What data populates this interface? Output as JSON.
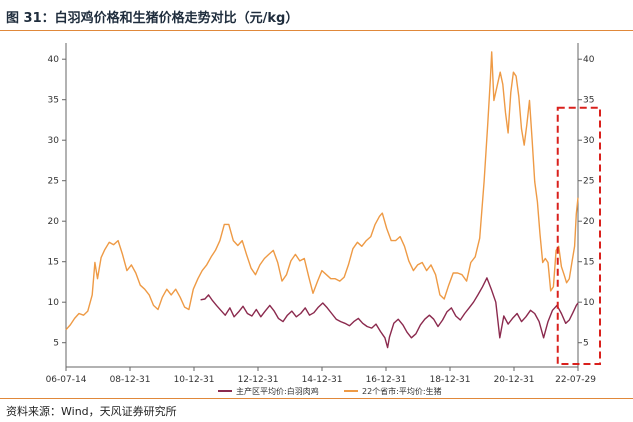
{
  "figure_title": "图 31：白羽鸡价格和生猪价格走势对比（元/kg）",
  "source": "资料来源：Wind，天风证券研究所",
  "colors": {
    "chicken": "#8b2a4e",
    "hog": "#ee9a45",
    "highlight": "#d9201c",
    "rule": "#e0883a"
  },
  "chart_data": {
    "type": "line",
    "title": "",
    "xlabel": "",
    "ylabel": "",
    "x_tick_labels": [
      "06-07-14",
      "08-12-31",
      "10-12-31",
      "12-12-31",
      "14-12-31",
      "16-12-31",
      "18-12-31",
      "20-12-31",
      "22-07-29"
    ],
    "x_range": [
      "2006-07-14",
      "2022-07-29"
    ],
    "ylim": [
      2,
      42
    ],
    "y_ticks": [
      5,
      10,
      15,
      20,
      25,
      30,
      35,
      40
    ],
    "y_tick_labels_left": [
      "5",
      "10",
      "15",
      "20",
      "25",
      "30",
      "35",
      "40"
    ],
    "y_tick_labels_right": [
      "5",
      "10",
      "15",
      "20",
      "25",
      "30",
      "35",
      "40"
    ],
    "grid": false,
    "legend_position": "bottom",
    "highlight_annotation": {
      "x_range": [
        "2022-01-01",
        "2022-07-29"
      ],
      "y_range": [
        2,
        34
      ],
      "style": "dashed red box"
    },
    "series": [
      {
        "name": "主产区平均价:白羽肉鸡",
        "color": "#8b2a4e",
        "points": [
          [
            "2010-10-01",
            10.3
          ],
          [
            "2010-11-20",
            10.4
          ],
          [
            "2010-12-31",
            10.9
          ],
          [
            "2011-02-15",
            10.2
          ],
          [
            "2011-04-01",
            9.6
          ],
          [
            "2011-05-20",
            9.0
          ],
          [
            "2011-07-10",
            8.4
          ],
          [
            "2011-09-01",
            9.3
          ],
          [
            "2011-10-20",
            8.2
          ],
          [
            "2011-12-10",
            8.8
          ],
          [
            "2012-01-30",
            9.5
          ],
          [
            "2012-03-20",
            8.6
          ],
          [
            "2012-05-10",
            8.3
          ],
          [
            "2012-06-30",
            9.1
          ],
          [
            "2012-08-20",
            8.2
          ],
          [
            "2012-10-10",
            8.9
          ],
          [
            "2012-12-01",
            9.6
          ],
          [
            "2013-01-20",
            8.9
          ],
          [
            "2013-03-10",
            8.0
          ],
          [
            "2013-05-01",
            7.6
          ],
          [
            "2013-06-20",
            8.4
          ],
          [
            "2013-08-10",
            8.9
          ],
          [
            "2013-09-30",
            8.2
          ],
          [
            "2013-11-20",
            8.6
          ],
          [
            "2014-01-10",
            9.3
          ],
          [
            "2014-03-01",
            8.4
          ],
          [
            "2014-04-20",
            8.7
          ],
          [
            "2014-06-10",
            9.4
          ],
          [
            "2014-07-31",
            9.9
          ],
          [
            "2014-09-20",
            9.3
          ],
          [
            "2014-11-10",
            8.6
          ],
          [
            "2014-12-31",
            7.9
          ],
          [
            "2015-02-20",
            7.6
          ],
          [
            "2015-04-10",
            7.4
          ],
          [
            "2015-06-01",
            7.1
          ],
          [
            "2015-07-20",
            7.6
          ],
          [
            "2015-09-10",
            8.0
          ],
          [
            "2015-10-30",
            7.4
          ],
          [
            "2015-12-20",
            7.0
          ],
          [
            "2016-02-10",
            6.8
          ],
          [
            "2016-03-30",
            7.3
          ],
          [
            "2016-05-20",
            6.4
          ],
          [
            "2016-07-10",
            5.6
          ],
          [
            "2016-08-10",
            4.4
          ],
          [
            "2016-09-01",
            5.7
          ],
          [
            "2016-10-20",
            7.4
          ],
          [
            "2016-12-10",
            7.9
          ],
          [
            "2017-02-01",
            7.2
          ],
          [
            "2017-03-20",
            6.3
          ],
          [
            "2017-05-10",
            5.6
          ],
          [
            "2017-06-30",
            6.1
          ],
          [
            "2017-08-20",
            7.2
          ],
          [
            "2017-10-10",
            7.9
          ],
          [
            "2017-12-01",
            8.4
          ],
          [
            "2018-01-20",
            7.9
          ],
          [
            "2018-03-10",
            7.0
          ],
          [
            "2018-05-01",
            7.8
          ],
          [
            "2018-06-20",
            8.8
          ],
          [
            "2018-08-10",
            9.3
          ],
          [
            "2018-09-30",
            8.3
          ],
          [
            "2018-11-20",
            7.8
          ],
          [
            "2019-01-10",
            8.6
          ],
          [
            "2019-03-01",
            9.3
          ],
          [
            "2019-04-20",
            10.0
          ],
          [
            "2019-06-10",
            10.9
          ],
          [
            "2019-08-01",
            11.9
          ],
          [
            "2019-09-20",
            13.0
          ],
          [
            "2019-11-10",
            11.6
          ],
          [
            "2019-12-31",
            10.0
          ],
          [
            "2020-02-15",
            5.6
          ],
          [
            "2020-04-01",
            8.3
          ],
          [
            "2020-05-20",
            7.3
          ],
          [
            "2020-07-10",
            8.0
          ],
          [
            "2020-08-31",
            8.6
          ],
          [
            "2020-10-20",
            7.6
          ],
          [
            "2020-12-10",
            8.2
          ],
          [
            "2021-01-31",
            9.0
          ],
          [
            "2021-03-20",
            8.6
          ],
          [
            "2021-05-10",
            7.6
          ],
          [
            "2021-06-30",
            5.6
          ],
          [
            "2021-08-20",
            7.6
          ],
          [
            "2021-10-10",
            9.0
          ],
          [
            "2021-12-01",
            9.6
          ],
          [
            "2022-01-20",
            8.6
          ],
          [
            "2022-03-10",
            7.4
          ],
          [
            "2022-04-20",
            7.8
          ],
          [
            "2022-06-01",
            8.7
          ],
          [
            "2022-07-10",
            9.6
          ],
          [
            "2022-07-29",
            9.9
          ]
        ]
      },
      {
        "name": "22个省市:平均价:生猪",
        "color": "#ee9a45",
        "points": [
          [
            "2006-07-14",
            6.6
          ],
          [
            "2006-09-01",
            7.2
          ],
          [
            "2006-10-20",
            8.0
          ],
          [
            "2006-12-10",
            8.6
          ],
          [
            "2007-01-30",
            8.4
          ],
          [
            "2007-03-20",
            8.9
          ],
          [
            "2007-05-10",
            10.9
          ],
          [
            "2007-06-10",
            14.9
          ],
          [
            "2007-07-10",
            12.9
          ],
          [
            "2007-08-20",
            15.5
          ],
          [
            "2007-10-01",
            16.5
          ],
          [
            "2007-11-20",
            17.4
          ],
          [
            "2008-01-10",
            17.1
          ],
          [
            "2008-03-01",
            17.6
          ],
          [
            "2008-04-20",
            15.9
          ],
          [
            "2008-06-10",
            13.9
          ],
          [
            "2008-07-31",
            14.6
          ],
          [
            "2008-09-20",
            13.6
          ],
          [
            "2008-11-10",
            12.1
          ],
          [
            "2008-12-31",
            11.6
          ],
          [
            "2009-02-20",
            10.9
          ],
          [
            "2009-04-10",
            9.6
          ],
          [
            "2009-06-01",
            9.1
          ],
          [
            "2009-07-20",
            10.6
          ],
          [
            "2009-09-10",
            11.6
          ],
          [
            "2009-10-30",
            10.9
          ],
          [
            "2009-12-20",
            11.6
          ],
          [
            "2010-02-10",
            10.6
          ],
          [
            "2010-04-01",
            9.4
          ],
          [
            "2010-05-20",
            9.1
          ],
          [
            "2010-07-10",
            11.6
          ],
          [
            "2010-08-31",
            12.9
          ],
          [
            "2010-10-20",
            13.9
          ],
          [
            "2010-12-10",
            14.6
          ],
          [
            "2011-01-31",
            15.6
          ],
          [
            "2011-03-20",
            16.4
          ],
          [
            "2011-05-10",
            17.6
          ],
          [
            "2011-06-30",
            19.6
          ],
          [
            "2011-08-20",
            19.6
          ],
          [
            "2011-10-10",
            17.6
          ],
          [
            "2011-12-01",
            17.0
          ],
          [
            "2012-01-20",
            17.6
          ],
          [
            "2012-03-10",
            15.9
          ],
          [
            "2012-05-01",
            14.2
          ],
          [
            "2012-06-20",
            13.4
          ],
          [
            "2012-08-10",
            14.6
          ],
          [
            "2012-09-30",
            15.4
          ],
          [
            "2012-11-20",
            15.9
          ],
          [
            "2013-01-10",
            16.4
          ],
          [
            "2013-03-01",
            14.9
          ],
          [
            "2013-04-20",
            12.6
          ],
          [
            "2013-06-10",
            13.4
          ],
          [
            "2013-07-31",
            15.1
          ],
          [
            "2013-09-20",
            15.9
          ],
          [
            "2013-11-10",
            15.1
          ],
          [
            "2013-12-31",
            15.4
          ],
          [
            "2014-02-20",
            13.1
          ],
          [
            "2014-04-10",
            11.1
          ],
          [
            "2014-06-01",
            12.6
          ],
          [
            "2014-07-20",
            13.9
          ],
          [
            "2014-09-10",
            13.4
          ],
          [
            "2014-10-30",
            12.9
          ],
          [
            "2014-12-20",
            12.9
          ],
          [
            "2015-02-10",
            12.6
          ],
          [
            "2015-04-01",
            13.1
          ],
          [
            "2015-05-20",
            14.6
          ],
          [
            "2015-07-10",
            16.6
          ],
          [
            "2015-08-31",
            17.4
          ],
          [
            "2015-10-20",
            16.9
          ],
          [
            "2015-12-10",
            17.6
          ],
          [
            "2016-01-31",
            18.1
          ],
          [
            "2016-03-20",
            19.6
          ],
          [
            "2016-05-10",
            20.6
          ],
          [
            "2016-06-10",
            21.0
          ],
          [
            "2016-07-31",
            19.1
          ],
          [
            "2016-09-20",
            17.6
          ],
          [
            "2016-11-10",
            17.6
          ],
          [
            "2016-12-31",
            18.1
          ],
          [
            "2017-02-20",
            16.9
          ],
          [
            "2017-04-10",
            15.1
          ],
          [
            "2017-06-01",
            13.9
          ],
          [
            "2017-07-20",
            14.6
          ],
          [
            "2017-09-10",
            14.9
          ],
          [
            "2017-10-30",
            13.9
          ],
          [
            "2017-12-20",
            14.6
          ],
          [
            "2018-02-10",
            13.4
          ],
          [
            "2018-04-01",
            10.9
          ],
          [
            "2018-05-20",
            10.4
          ],
          [
            "2018-07-10",
            12.1
          ],
          [
            "2018-08-31",
            13.6
          ],
          [
            "2018-10-20",
            13.6
          ],
          [
            "2018-12-10",
            13.4
          ],
          [
            "2019-01-31",
            12.6
          ],
          [
            "2019-03-20",
            14.9
          ],
          [
            "2019-05-10",
            15.6
          ],
          [
            "2019-06-30",
            17.9
          ],
          [
            "2019-08-20",
            24.9
          ],
          [
            "2019-09-30",
            31.9
          ],
          [
            "2019-10-31",
            37.6
          ],
          [
            "2019-11-15",
            40.9
          ],
          [
            "2019-12-10",
            34.9
          ],
          [
            "2020-01-20",
            36.9
          ],
          [
            "2020-02-20",
            38.4
          ],
          [
            "2020-03-20",
            36.9
          ],
          [
            "2020-04-20",
            33.4
          ],
          [
            "2020-05-20",
            30.9
          ],
          [
            "2020-06-20",
            35.9
          ],
          [
            "2020-07-20",
            38.4
          ],
          [
            "2020-08-20",
            37.9
          ],
          [
            "2020-09-20",
            35.4
          ],
          [
            "2020-10-20",
            31.4
          ],
          [
            "2020-11-20",
            29.4
          ],
          [
            "2020-12-20",
            31.9
          ],
          [
            "2021-01-20",
            34.9
          ],
          [
            "2021-02-20",
            29.9
          ],
          [
            "2021-03-20",
            24.9
          ],
          [
            "2021-04-20",
            22.4
          ],
          [
            "2021-05-20",
            18.4
          ],
          [
            "2021-06-20",
            14.9
          ],
          [
            "2021-07-20",
            15.4
          ],
          [
            "2021-08-20",
            14.9
          ],
          [
            "2021-09-20",
            11.4
          ],
          [
            "2021-10-20",
            11.9
          ],
          [
            "2021-11-20",
            16.4
          ],
          [
            "2021-12-20",
            16.9
          ],
          [
            "2022-01-20",
            14.4
          ],
          [
            "2022-02-20",
            13.4
          ],
          [
            "2022-03-20",
            12.4
          ],
          [
            "2022-04-20",
            12.9
          ],
          [
            "2022-05-20",
            14.9
          ],
          [
            "2022-06-20",
            16.9
          ],
          [
            "2022-07-10",
            20.9
          ],
          [
            "2022-07-29",
            22.9
          ]
        ]
      }
    ]
  }
}
